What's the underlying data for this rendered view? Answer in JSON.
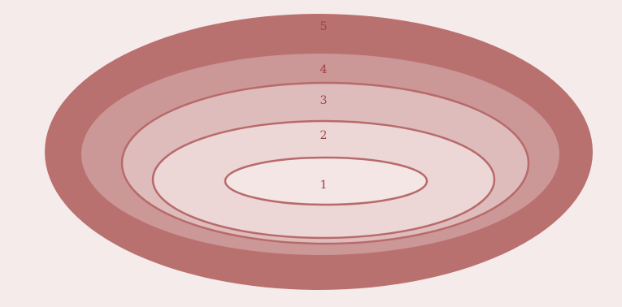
{
  "diagram": {
    "type": "nested-ellipses",
    "levels": [
      {
        "label": "1",
        "fill": "#f5e6e6",
        "stroke": "#b86a6a"
      },
      {
        "label": "2",
        "fill": "#ecd6d6",
        "stroke": "#b86a6a"
      },
      {
        "label": "3",
        "fill": "#dfbcbc",
        "stroke": "#b86a6a"
      },
      {
        "label": "4",
        "fill": "#cc9797",
        "stroke": "none"
      },
      {
        "label": "5",
        "fill": "#b9716f",
        "stroke": "none"
      }
    ],
    "background": "#f6ebeb"
  }
}
